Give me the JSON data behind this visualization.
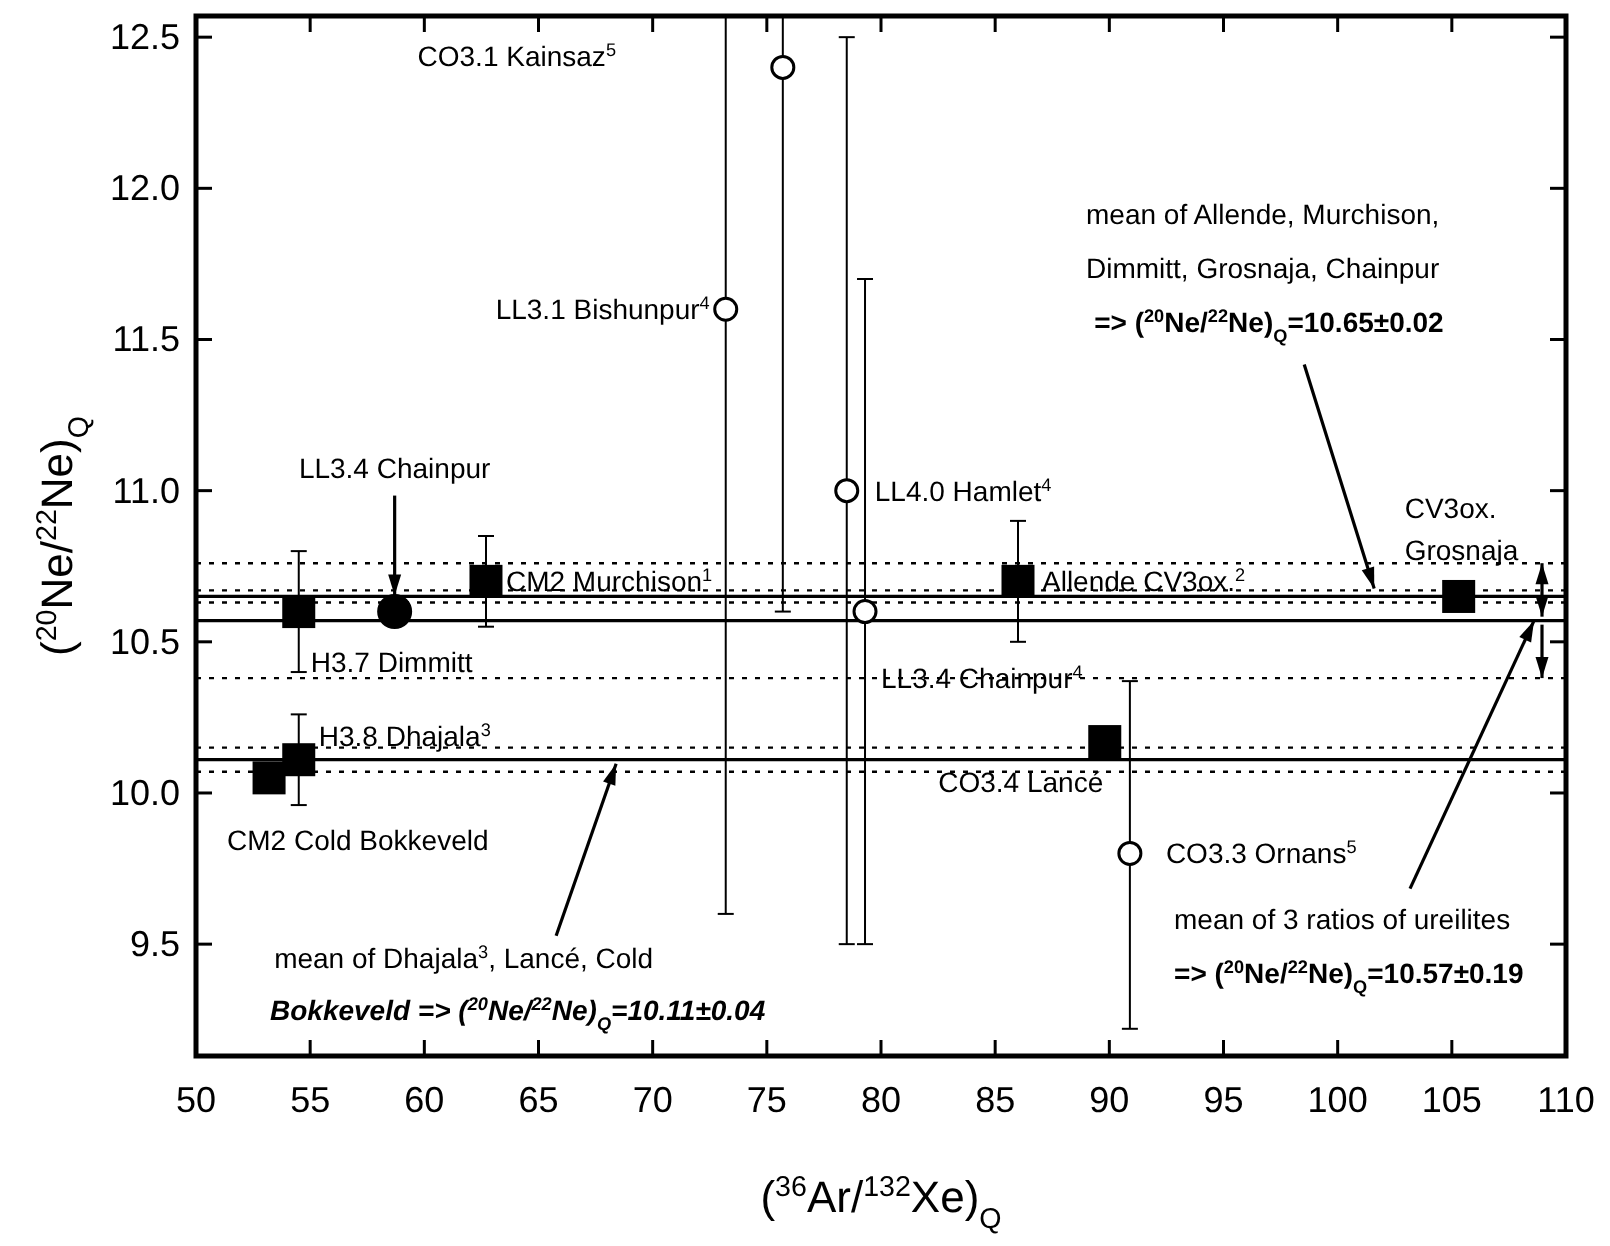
{
  "chart_data": {
    "type": "scatter",
    "xlabel": "($^{36}$Ar/$^{132}$Xe)$_{Q}$",
    "ylabel": "($^{20}$Ne/$^{22}$Ne)$_{Q}$",
    "xlim": [
      50,
      110
    ],
    "ylim": [
      9.13,
      12.57
    ],
    "xticks": [
      50,
      55,
      60,
      65,
      70,
      75,
      80,
      85,
      90,
      95,
      100,
      105,
      110
    ],
    "yticks": [
      9.5,
      {
        "value": 10,
        "label": "10.0"
      },
      10.5,
      {
        "value": 11,
        "label": "11.0"
      },
      11.5,
      {
        "value": 12,
        "label": "12.0"
      },
      12.5
    ],
    "grid": false,
    "series": [
      {
        "marker": "square",
        "color": "#000000",
        "x": [
          53.2,
          54.5,
          54.5,
          62.7,
          86,
          89.8,
          105.3
        ],
        "values": [
          10.05,
          10.11,
          10.6,
          10.7,
          10.7,
          10.17,
          10.65
        ],
        "errors": [
          null,
          0.15,
          0.2,
          0.15,
          0.2,
          null,
          null
        ]
      },
      {
        "marker": "circle",
        "color": "#000000",
        "x": [
          58.7
        ],
        "values": [
          10.6
        ]
      },
      {
        "marker": "circle",
        "color": "#ffffff",
        "x": [
          73.2,
          75.7,
          78.5,
          79.3,
          90.9
        ],
        "values": [
          11.6,
          12.4,
          11.0,
          10.6,
          9.8
        ],
        "errors": [
          [
            9.6,
            12.57
          ],
          [
            10.6,
            12.57
          ],
          [
            9.5,
            12.5
          ],
          [
            9.5,
            11.7
          ],
          [
            9.22,
            10.37
          ]
        ]
      }
    ],
    "ref_lines": [
      {
        "axis": "y",
        "value": 10.65,
        "line_style": "solid"
      },
      {
        "axis": "y",
        "value": 10.67,
        "line_style": "dotted"
      },
      {
        "axis": "y",
        "value": 10.63,
        "line_style": "dotted"
      },
      {
        "axis": "y",
        "value": 10.57,
        "line_style": "solid"
      },
      {
        "axis": "y",
        "value": 10.76,
        "line_style": "dotted"
      },
      {
        "axis": "y",
        "value": 10.38,
        "line_style": "dotted"
      },
      {
        "axis": "y",
        "value": 10.11,
        "line_style": "solid"
      },
      {
        "axis": "y",
        "value": 10.15,
        "line_style": "dotted"
      },
      {
        "axis": "y",
        "value": 10.07,
        "line_style": "dotted"
      }
    ],
    "annotations": [
      "CO3.1 Kainsaz$^{5}$",
      {
        "text": "LL3.1 Bishunpur$^{4}$",
        "x": 73.2,
        "y": 11.6
      },
      {
        "text": "LL4.0 Hamlet$^{4}$",
        "x": 78.5,
        "y": 11.0
      },
      {
        "text": "LL3.4 Chainpur$^{4}$",
        "x": 79.3,
        "y": 10.6
      },
      {
        "text": "CO3.3 Ornans$^{5}$",
        "x": 90.9,
        "y": 9.8
      },
      {
        "text": "CO3.4 Lancé",
        "x": 89.8,
        "y": 10.17
      },
      {
        "text": "Allende CV3ox.$^{2}$",
        "x": 86,
        "y": 10.7
      },
      {
        "text": "CV3ox.\nGrosnaja",
        "x": 105.3,
        "y": 10.65
      },
      {
        "text": "CM2 Murchison$^{1}$",
        "x": 62.7,
        "y": 10.7
      },
      {
        "text": "H3.7 Dimmitt",
        "x": 54.5,
        "y": 10.6
      },
      {
        "text": "H3.8 Dhajala$^{3}$",
        "x": 54.5,
        "y": 10.11
      },
      {
        "text": "CM2 Cold Bokkeveld",
        "x": 53.2,
        "y": 10.05
      },
      {
        "text": "LL3.4 Chainpur",
        "x": 58.7,
        "y": 10.6
      },
      "mean of Allende, Murchison,",
      "Dimmitt, Grosnaja, Chainpur",
      {
        "text": "=> ($^{20}$Ne/$^{22}$Ne)$_{Q}$=10.65±0.02",
        "x": 101.6,
        "y": 10.65
      },
      {
        "text": "mean of Dhajala$^{3}$, Lancé, Cold",
        "x": 68.4,
        "y": 10.11
      },
      "Bokkeveld => ($^{20}$Ne/$^{22}$Ne)$_{Q}$=10.11±0.04",
      {
        "text": "mean of 3 ratios of ureilites\n=> ($^{20}$Ne/$^{22}$Ne)$_{Q}$=10.57±0.19",
        "x": 108.6,
        "y": 10.57
      }
    ]
  }
}
